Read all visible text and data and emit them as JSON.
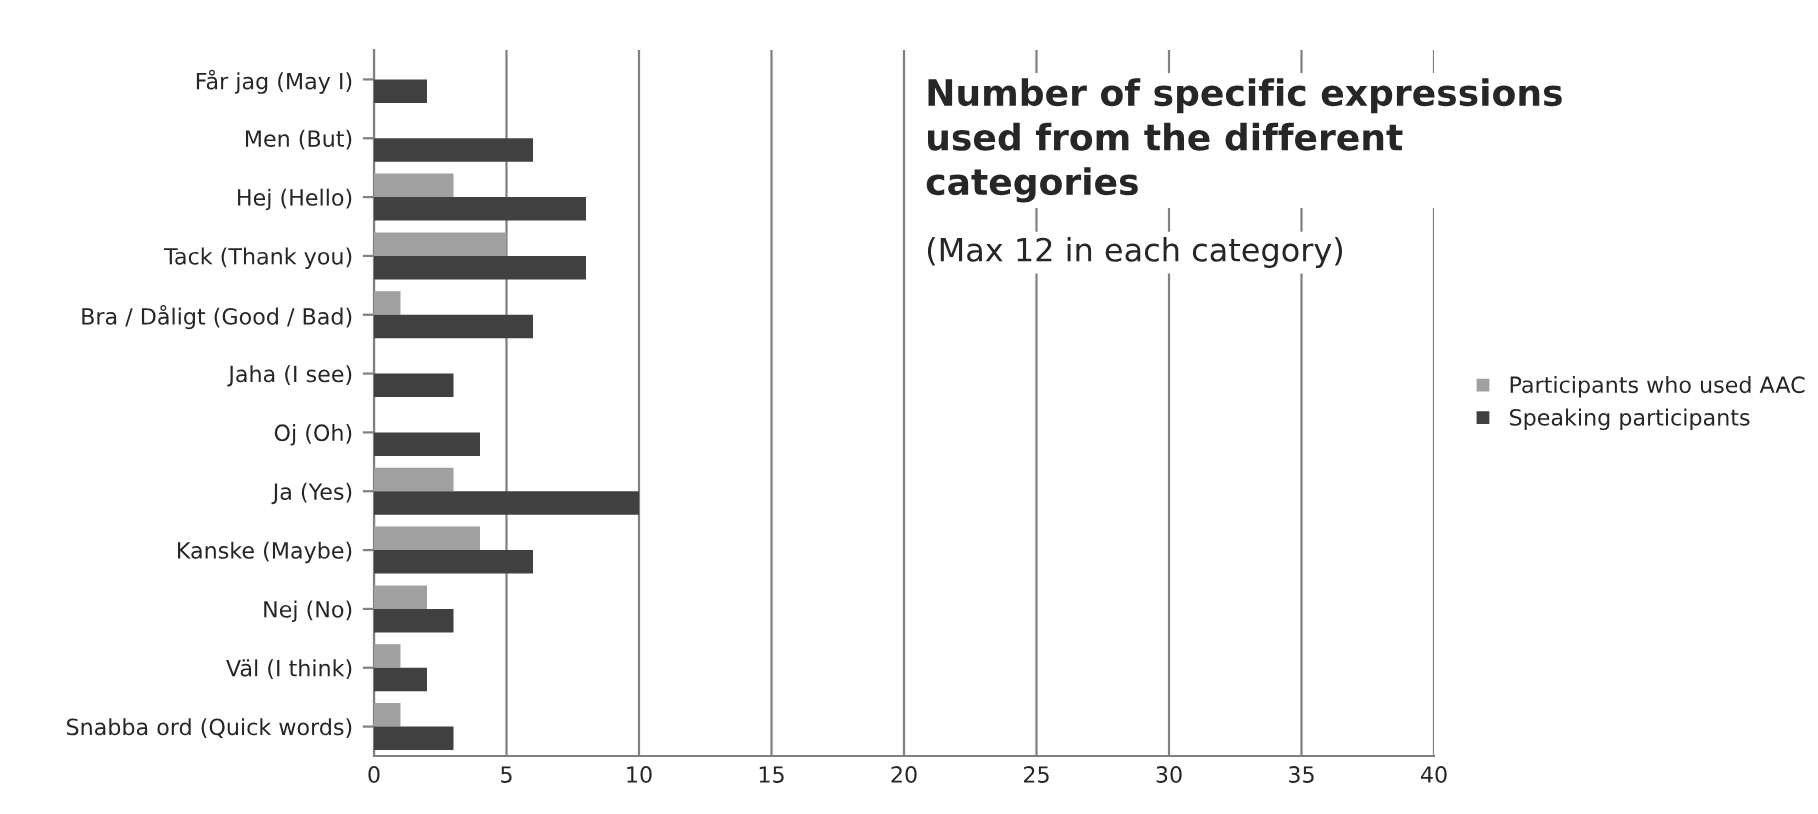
{
  "chart_data": {
    "type": "bar",
    "orientation": "horizontal",
    "title": "Number of specific expressions used from the different categories",
    "subtitle": "(Max 12 in each category)",
    "categories": [
      "Får jag (May I)",
      "Men (But)",
      "Hej (Hello)",
      "Tack (Thank you)",
      "Bra / Dåligt (Good / Bad)",
      "Jaha (I see)",
      "Oj (Oh)",
      "Ja (Yes)",
      "Kanske (Maybe)",
      "Nej (No)",
      "Väl (I think)",
      "Snabba ord (Quick words)"
    ],
    "series": [
      {
        "name": "Participants who used AAC",
        "color": "#a0a0a0",
        "values": [
          0,
          0,
          3,
          5,
          1,
          0,
          0,
          3,
          4,
          2,
          1,
          1
        ]
      },
      {
        "name": "Speaking participants",
        "color": "#404040",
        "values": [
          2,
          6,
          8,
          8,
          6,
          3,
          4,
          10,
          6,
          3,
          2,
          3
        ]
      }
    ],
    "xlim": [
      0,
      40
    ],
    "xticks": [
      0,
      5,
      10,
      15,
      20,
      25,
      30,
      35,
      40
    ],
    "grid": "x",
    "legend": "right"
  }
}
